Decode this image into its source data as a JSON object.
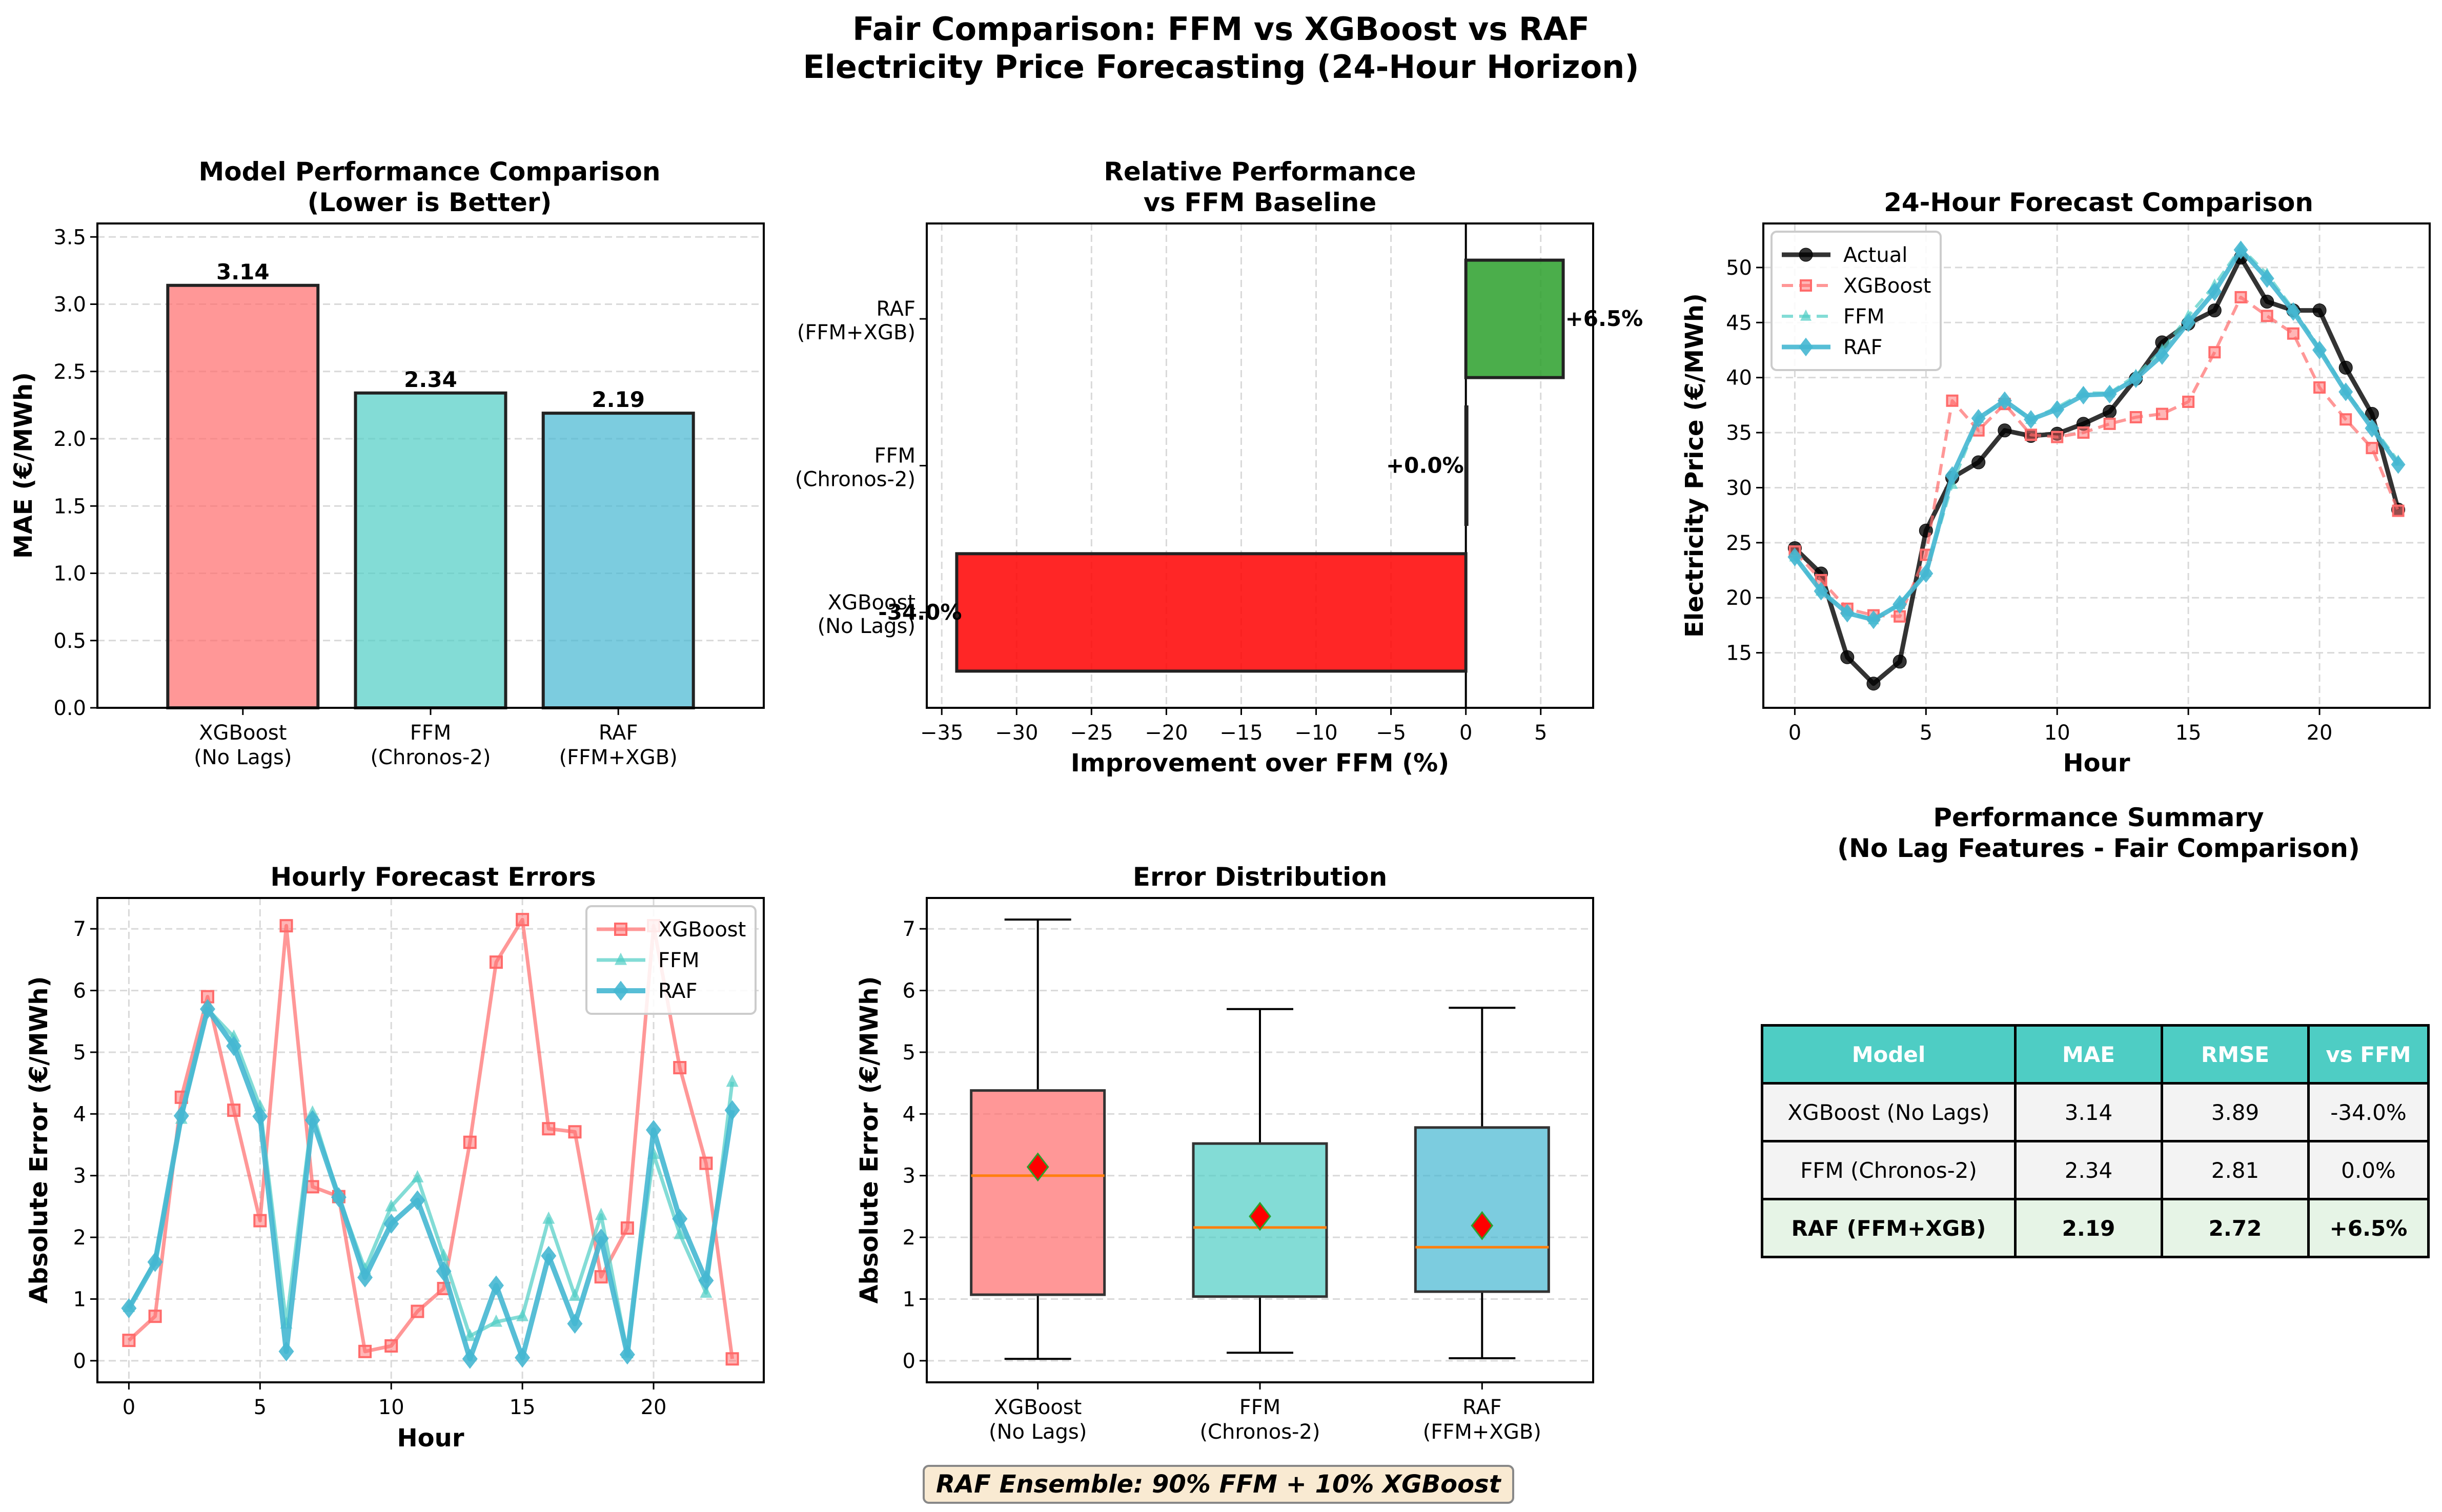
{
  "figure": {
    "suptitle_line1": "Fair Comparison: FFM vs XGBoost vs RAF",
    "suptitle_line2": "Electricity Price Forecasting (24-Hour Horizon)",
    "footnote": "RAF Ensemble: 90% FFM + 10% XGBoost",
    "colors": {
      "xgboost": "#ff6b6b",
      "ffm": "#4ecdc4",
      "raf": "#45b7d1",
      "actual": "#000000",
      "positive": "#2ca02c",
      "negative": "#ff0000",
      "median": "#ff7f0e",
      "mean_marker": "#ff0000",
      "table_header": "#4ecdc4"
    }
  },
  "chart_data": [
    {
      "type": "bar",
      "title": "Model Performance Comparison\n(Lower is Better)",
      "title_line1": "Model Performance Comparison",
      "title_line2": "(Lower is Better)",
      "xlabel": "",
      "ylabel": "MAE (€/MWh)",
      "categories": [
        "XGBoost\n(No Lags)",
        "FFM\n(Chronos-2)",
        "RAF\n(FFM+XGB)"
      ],
      "category_lines": [
        [
          "XGBoost",
          "(No Lags)"
        ],
        [
          "FFM",
          "(Chronos-2)"
        ],
        [
          "RAF",
          "(FFM+XGB)"
        ]
      ],
      "values": [
        3.14,
        2.34,
        2.19
      ],
      "data_labels": [
        "3.14",
        "2.34",
        "2.19"
      ],
      "ylim": [
        0,
        3.6
      ],
      "yticks": [
        0.0,
        0.5,
        1.0,
        1.5,
        2.0,
        2.5,
        3.0,
        3.5
      ],
      "ytick_labels": [
        "0.0",
        "0.5",
        "1.0",
        "1.5",
        "2.0",
        "2.5",
        "3.0",
        "3.5"
      ],
      "grid": "y"
    },
    {
      "type": "bar",
      "orientation": "horizontal",
      "title": "Relative Performance\nvs FFM Baseline",
      "title_line1": "Relative Performance",
      "title_line2": "vs FFM Baseline",
      "xlabel": "Improvement over FFM (%)",
      "ylabel": "",
      "categories": [
        "XGBoost\n(No Lags)",
        "FFM\n(Chronos-2)",
        "RAF\n(FFM+XGB)"
      ],
      "category_lines": [
        [
          "XGBoost",
          "(No Lags)"
        ],
        [
          "FFM",
          "(Chronos-2)"
        ],
        [
          "RAF",
          "(FFM+XGB)"
        ]
      ],
      "values": [
        -34.0,
        0.0,
        6.5
      ],
      "data_labels": [
        "-34.0%",
        "+0.0%",
        "+6.5%"
      ],
      "xlim": [
        -36,
        8.5
      ],
      "xticks": [
        -35,
        -30,
        -25,
        -20,
        -15,
        -10,
        -5,
        0,
        5
      ],
      "xtick_labels": [
        "−35",
        "−30",
        "−25",
        "−20",
        "−15",
        "−10",
        "−5",
        "0",
        "5"
      ],
      "grid": "x"
    },
    {
      "type": "line",
      "title": "24-Hour Forecast Comparison",
      "xlabel": "Hour",
      "ylabel": "Electricity Price (€/MWh)",
      "x": [
        0,
        1,
        2,
        3,
        4,
        5,
        6,
        7,
        8,
        9,
        10,
        11,
        12,
        13,
        14,
        15,
        16,
        17,
        18,
        19,
        20,
        21,
        22,
        23
      ],
      "xlim": [
        -1.2,
        24.2
      ],
      "ylim": [
        10,
        54
      ],
      "xticks": [
        0,
        5,
        10,
        15,
        20
      ],
      "yticks": [
        15,
        20,
        25,
        30,
        35,
        40,
        45,
        50
      ],
      "legend": "top-left",
      "grid": "both",
      "series": [
        {
          "name": "Actual",
          "marker": "circle",
          "style": "solid",
          "values": [
            24.5,
            22.2,
            14.6,
            12.2,
            14.2,
            26.1,
            30.9,
            32.3,
            35.2,
            34.7,
            34.9,
            35.8,
            36.9,
            39.9,
            43.2,
            44.9,
            46.1,
            50.9,
            46.9,
            46.1,
            46.1,
            40.9,
            36.7,
            28.0
          ]
        },
        {
          "name": "XGBoost",
          "marker": "square",
          "style": "dashed",
          "values": [
            24.2,
            21.6,
            19.0,
            18.4,
            18.3,
            23.9,
            37.9,
            35.2,
            37.6,
            34.8,
            34.6,
            35.0,
            35.8,
            36.4,
            36.7,
            37.8,
            42.3,
            47.3,
            45.6,
            44.0,
            39.1,
            36.2,
            33.6,
            27.9
          ]
        },
        {
          "name": "FFM",
          "marker": "triangle",
          "style": "dashed",
          "values": [
            23.7,
            20.6,
            18.7,
            18.0,
            19.4,
            22.3,
            30.3,
            36.3,
            37.9,
            36.2,
            37.3,
            38.6,
            38.6,
            40.2,
            42.5,
            45.6,
            48.4,
            51.8,
            49.4,
            46.2,
            42.7,
            38.8,
            35.6,
            32.4
          ]
        },
        {
          "name": "RAF",
          "marker": "diamond",
          "style": "solid",
          "values": [
            23.7,
            20.6,
            18.6,
            18.0,
            19.4,
            22.2,
            31.1,
            36.3,
            37.9,
            36.2,
            37.1,
            38.4,
            38.5,
            39.9,
            42.0,
            45.0,
            47.8,
            51.6,
            49.0,
            46.0,
            42.5,
            38.7,
            35.4,
            32.1
          ]
        }
      ]
    },
    {
      "type": "line",
      "title": "Hourly Forecast Errors",
      "xlabel": "Hour",
      "ylabel": "Absolute Error (€/MWh)",
      "x": [
        0,
        1,
        2,
        3,
        4,
        5,
        6,
        7,
        8,
        9,
        10,
        11,
        12,
        13,
        14,
        15,
        16,
        17,
        18,
        19,
        20,
        21,
        22,
        23
      ],
      "xlim": [
        -1.2,
        24.2
      ],
      "ylim": [
        -0.35,
        7.5
      ],
      "xticks": [
        0,
        5,
        10,
        15,
        20
      ],
      "yticks": [
        0,
        1,
        2,
        3,
        4,
        5,
        6,
        7
      ],
      "legend": "top-right",
      "grid": "both",
      "series": [
        {
          "name": "XGBoost",
          "marker": "square",
          "values": [
            0.33,
            0.72,
            4.27,
            5.9,
            4.06,
            2.27,
            7.05,
            2.82,
            2.66,
            0.15,
            0.24,
            0.8,
            1.17,
            3.54,
            6.46,
            7.15,
            3.76,
            3.71,
            1.36,
            2.15,
            7.05,
            4.75,
            3.2,
            0.03
          ]
        },
        {
          "name": "FFM",
          "marker": "triangle",
          "values": [
            0.87,
            1.62,
            3.92,
            5.7,
            5.25,
            4.12,
            0.6,
            4.02,
            2.65,
            1.48,
            2.5,
            2.97,
            1.7,
            0.4,
            0.63,
            0.72,
            2.3,
            1.05,
            2.36,
            0.12,
            3.35,
            2.05,
            1.1,
            4.52
          ]
        },
        {
          "name": "RAF",
          "marker": "diamond",
          "values": [
            0.85,
            1.6,
            3.97,
            5.7,
            5.1,
            3.96,
            0.15,
            3.9,
            2.65,
            1.35,
            2.22,
            2.6,
            1.45,
            0.03,
            1.22,
            0.05,
            1.7,
            0.6,
            1.98,
            0.1,
            3.74,
            2.3,
            1.3,
            4.06
          ]
        }
      ]
    },
    {
      "type": "box",
      "title": "Error Distribution",
      "xlabel": "",
      "ylabel": "Absolute Error (€/MWh)",
      "categories": [
        "XGBoost\n(No Lags)",
        "FFM\n(Chronos-2)",
        "RAF\n(FFM+XGB)"
      ],
      "category_lines": [
        [
          "XGBoost",
          "(No Lags)"
        ],
        [
          "FFM",
          "(Chronos-2)"
        ],
        [
          "RAF",
          "(FFM+XGB)"
        ]
      ],
      "ylim": [
        -0.35,
        7.5
      ],
      "yticks": [
        0,
        1,
        2,
        3,
        4,
        5,
        6,
        7
      ],
      "grid": "y",
      "boxes": [
        {
          "name": "XGBoost",
          "whisker_low": 0.03,
          "q1": 1.07,
          "median": 3.0,
          "q3": 4.38,
          "whisker_high": 7.15,
          "mean": 3.14
        },
        {
          "name": "FFM",
          "whisker_low": 0.13,
          "q1": 1.04,
          "median": 2.16,
          "q3": 3.52,
          "whisker_high": 5.7,
          "mean": 2.34
        },
        {
          "name": "RAF",
          "whisker_low": 0.04,
          "q1": 1.12,
          "median": 1.84,
          "q3": 3.78,
          "whisker_high": 5.72,
          "mean": 2.19
        }
      ]
    },
    {
      "type": "table",
      "title": "Performance Summary\n(No Lag Features - Fair Comparison)",
      "title_line1": "Performance Summary",
      "title_line2": "(No Lag Features - Fair Comparison)",
      "columns": [
        "Model",
        "MAE",
        "RMSE",
        "vs FFM"
      ],
      "rows": [
        [
          "XGBoost (No Lags)",
          "3.14",
          "3.89",
          "-34.0%"
        ],
        [
          "FFM (Chronos-2)",
          "2.34",
          "2.81",
          "0.0%"
        ],
        [
          "RAF (FFM+XGB)",
          "2.19",
          "2.72",
          "+6.5%"
        ]
      ],
      "highlight_row": 2
    }
  ]
}
